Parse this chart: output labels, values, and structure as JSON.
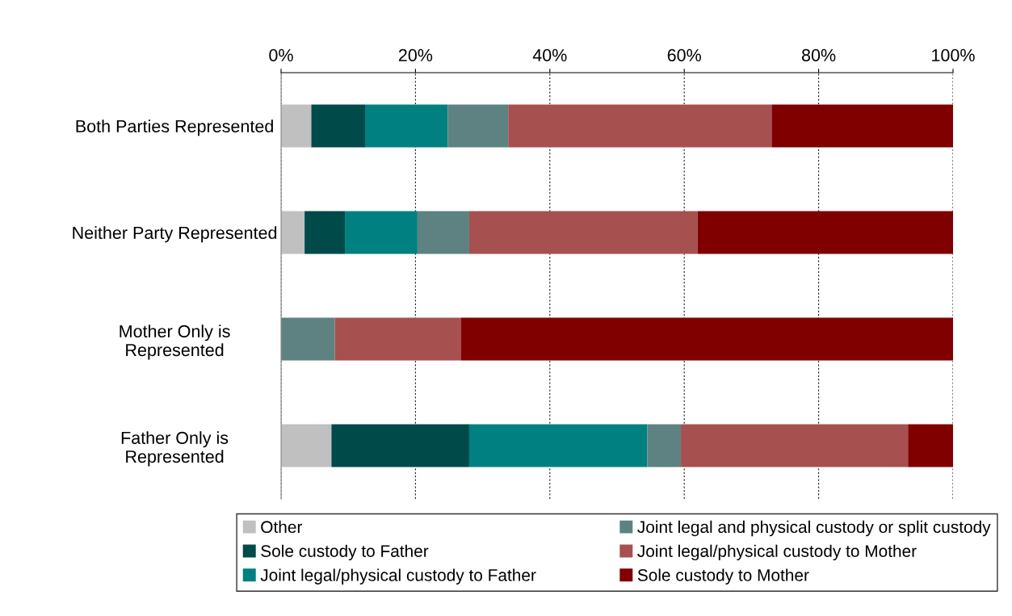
{
  "chart_data": {
    "type": "bar",
    "orientation": "horizontal",
    "stacked": true,
    "categories": [
      "Both Parties Represented",
      "Neither Party Represented",
      "Mother Only is\nRepresented",
      "Father Only is\nRepresented"
    ],
    "series": [
      {
        "name": "Other",
        "color": "#c0c0c0",
        "values": [
          4.5,
          3.5,
          0,
          7.5
        ]
      },
      {
        "name": "Sole custody to Father",
        "color": "#004a4a",
        "values": [
          8,
          6,
          0,
          20.5
        ]
      },
      {
        "name": "Joint legal/physical custody to Father",
        "color": "#008080",
        "values": [
          12.3,
          10.8,
          0,
          26.5
        ]
      },
      {
        "name": "Joint legal and physical custody or split custody",
        "color": "#5e8282",
        "values": [
          9,
          7.7,
          8,
          5
        ]
      },
      {
        "name": "Joint legal/physical custody to Mother",
        "color": "#a65050",
        "values": [
          39.2,
          34,
          18.8,
          33.8
        ]
      },
      {
        "name": "Sole custody to Mother",
        "color": "#800000",
        "values": [
          27,
          38,
          73.2,
          6.7
        ]
      }
    ],
    "xlim": [
      0,
      100
    ],
    "xticks": [
      {
        "value": 0,
        "label": "0%"
      },
      {
        "value": 20,
        "label": "20%"
      },
      {
        "value": 40,
        "label": "40%"
      },
      {
        "value": 60,
        "label": "60%"
      },
      {
        "value": 80,
        "label": "80%"
      },
      {
        "value": 100,
        "label": "100%"
      }
    ],
    "grid": "x",
    "legend": "bottom"
  }
}
